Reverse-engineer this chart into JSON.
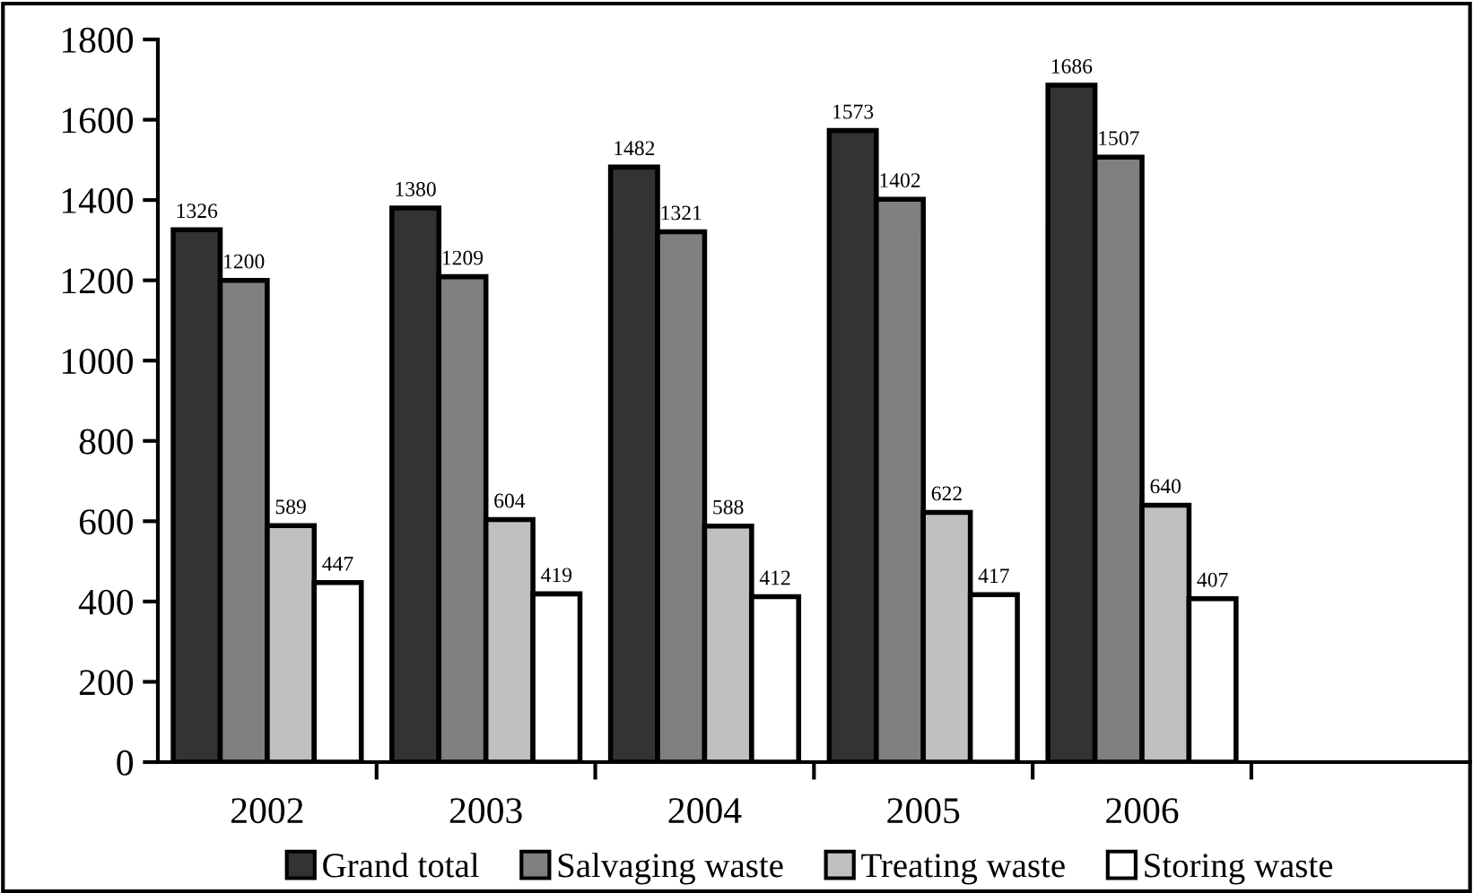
{
  "chart_data": {
    "type": "bar",
    "categories": [
      "2002",
      "2003",
      "2004",
      "2005",
      "2006",
      null
    ],
    "series": [
      {
        "name": "Grand total",
        "color": "#333333",
        "values": [
          1326,
          1380,
          1482,
          1573,
          1686,
          null
        ]
      },
      {
        "name": "Salvaging waste",
        "color": "#808080",
        "values": [
          1200,
          1209,
          1321,
          1402,
          1507,
          null
        ]
      },
      {
        "name": "Treating waste",
        "color": "#c0c0c0",
        "values": [
          589,
          604,
          588,
          622,
          640,
          null
        ]
      },
      {
        "name": "Storing waste",
        "color": "#ffffff",
        "values": [
          447,
          419,
          412,
          417,
          407,
          null
        ]
      }
    ],
    "ylim": [
      0,
      1800
    ],
    "yticks": [
      0,
      200,
      400,
      600,
      800,
      1000,
      1200,
      1400,
      1600,
      1800
    ],
    "data_labels": true,
    "legend": "bottom",
    "grid": false
  }
}
